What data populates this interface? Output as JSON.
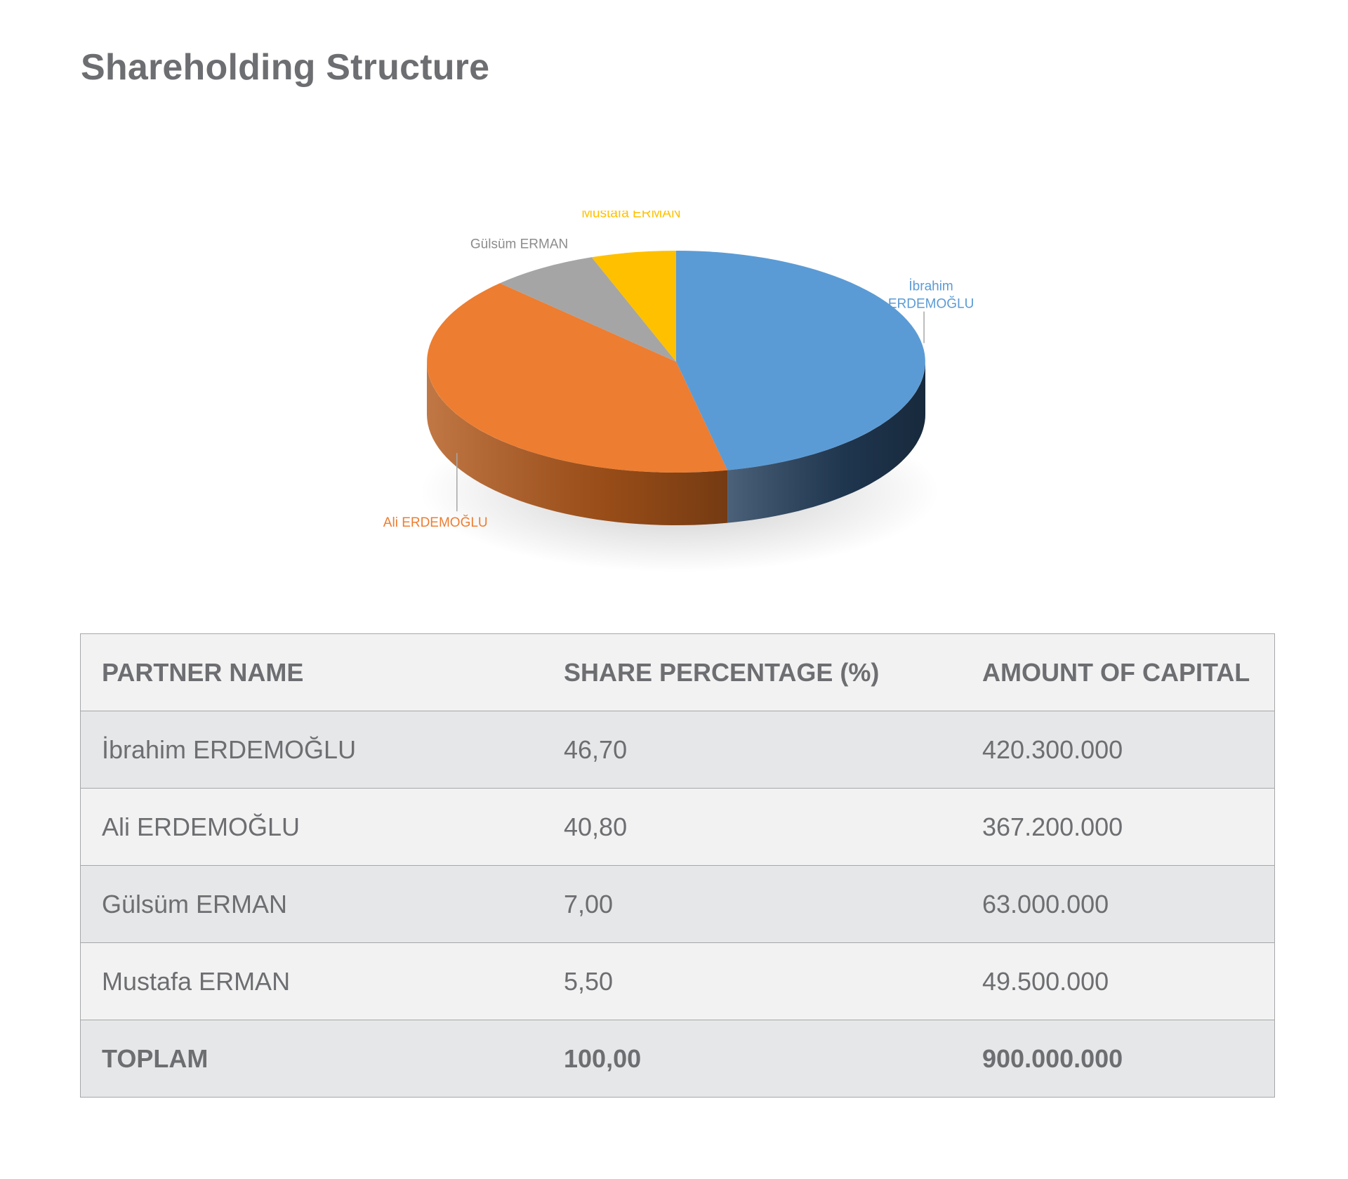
{
  "page": {
    "title": "Shareholding Structure"
  },
  "chart_data": {
    "type": "pie",
    "title": "",
    "series": [
      {
        "name": "İbrahim ERDEMOĞLU",
        "label_lines": [
          "İbrahim",
          "ERDEMOĞLU"
        ],
        "value": 46.7,
        "color": "#5b9bd5",
        "side_color": "#243f5c"
      },
      {
        "name": "Ali ERDEMOĞLU",
        "label_lines": [
          "Ali ERDEMOĞLU"
        ],
        "value": 40.8,
        "color": "#ed7d31",
        "side_color": "#b35a1c"
      },
      {
        "name": "Gülsüm ERMAN",
        "label_lines": [
          "Gülsüm ERMAN"
        ],
        "value": 7.0,
        "color": "#a5a5a5",
        "side_color": "#6f6f6f"
      },
      {
        "name": "Mustafa ERMAN",
        "label_lines": [
          "Mustafa ERMAN"
        ],
        "value": 5.5,
        "color": "#ffc000",
        "side_color": "#b38600"
      }
    ],
    "style": "3d-pie",
    "legend": "none"
  },
  "table": {
    "headers": [
      "PARTNER NAME",
      "SHARE PERCENTAGE (%)",
      "AMOUNT OF CAPITAL"
    ],
    "rows": [
      [
        "İbrahim ERDEMOĞLU",
        "46,70",
        "420.300.000"
      ],
      [
        "Ali ERDEMOĞLU",
        "40,80",
        "367.200.000"
      ],
      [
        "Gülsüm ERMAN",
        "7,00",
        "63.000.000"
      ],
      [
        "Mustafa ERMAN",
        "5,50",
        "49.500.000"
      ]
    ],
    "total": [
      "TOPLAM",
      "100,00",
      "900.000.000"
    ]
  }
}
